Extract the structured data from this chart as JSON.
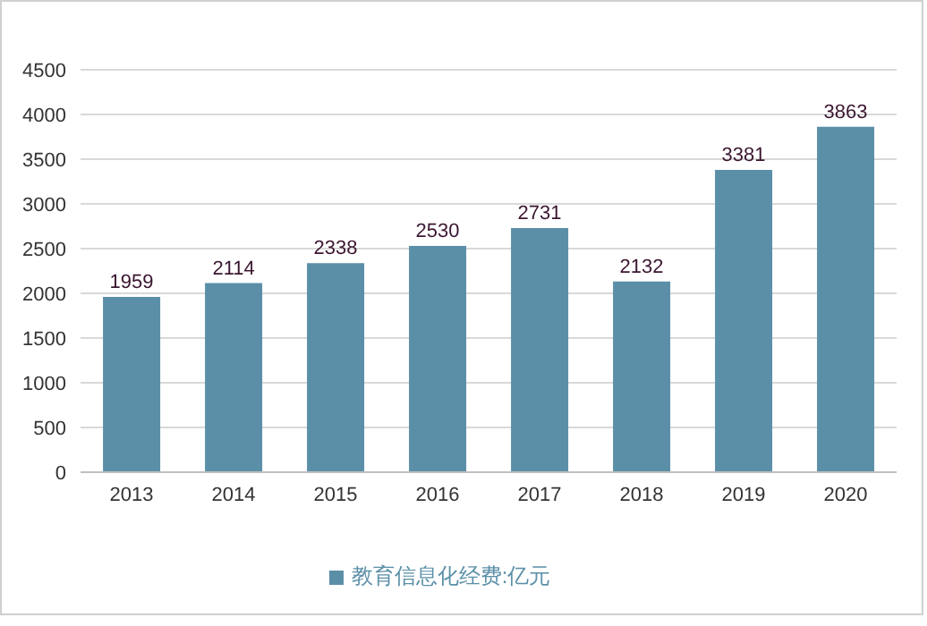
{
  "chart_data": {
    "type": "bar",
    "categories": [
      "2013",
      "2014",
      "2015",
      "2016",
      "2017",
      "2018",
      "2019",
      "2020"
    ],
    "series": [
      {
        "name": "教育信息化经费:亿元",
        "color": "#5b8fa8",
        "values": [
          1959,
          2114,
          2338,
          2530,
          2731,
          2132,
          3381,
          3863
        ]
      }
    ],
    "ylim": [
      0,
      4500
    ],
    "yticks": [
      0,
      500,
      1000,
      1500,
      2000,
      2500,
      3000,
      3500,
      4000,
      4500
    ],
    "grid": "y",
    "legend": "bottom",
    "data_labels": true
  }
}
